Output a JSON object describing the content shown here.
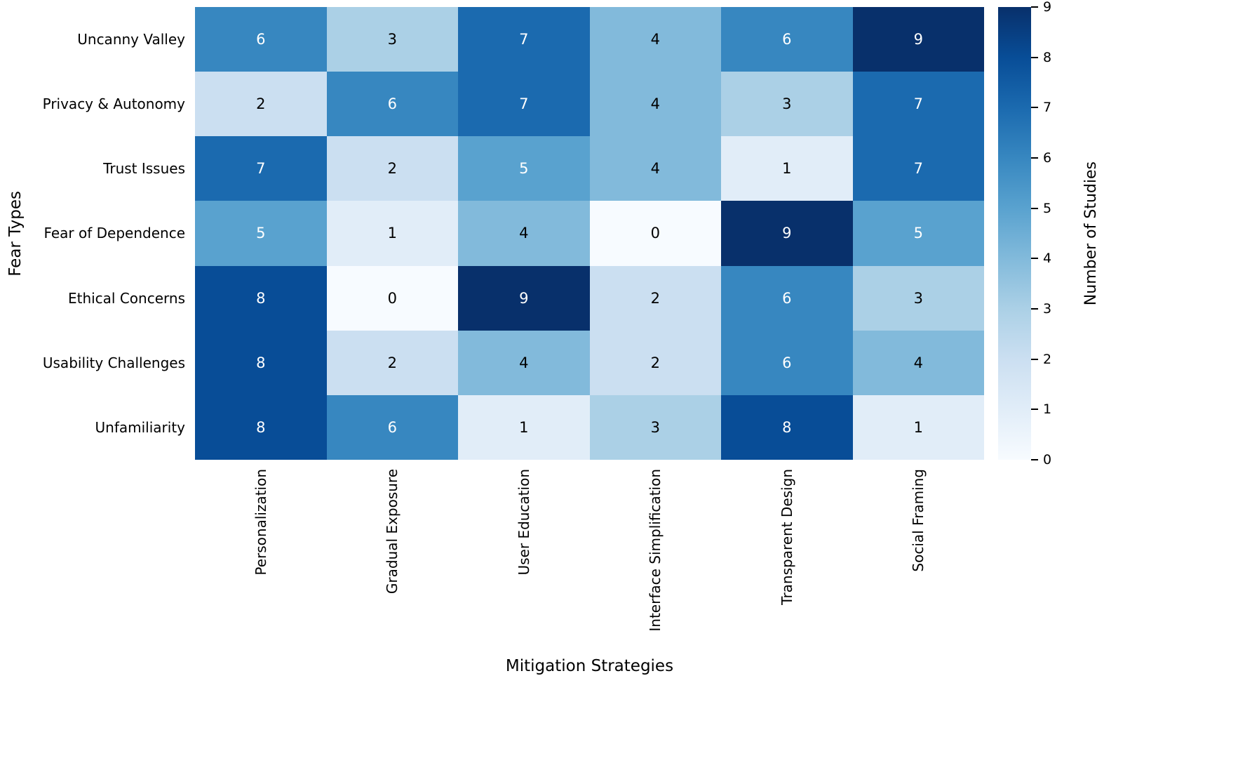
{
  "chart_data": {
    "type": "heatmap",
    "xlabel": "Mitigation Strategies",
    "ylabel": "Fear Types",
    "colorbar_label": "Number of Studies",
    "columns": [
      "Personalization",
      "Gradual Exposure",
      "User Education",
      "Interface Simplification",
      "Transparent Design",
      "Social Framing"
    ],
    "rows": [
      "Uncanny Valley",
      "Privacy & Autonomy",
      "Trust Issues",
      "Fear of Dependence",
      "Ethical Concerns",
      "Usability Challenges",
      "Unfamiliarity"
    ],
    "values": [
      [
        6,
        3,
        7,
        4,
        6,
        9
      ],
      [
        2,
        6,
        7,
        4,
        3,
        7
      ],
      [
        7,
        2,
        5,
        4,
        1,
        7
      ],
      [
        5,
        1,
        4,
        0,
        9,
        5
      ],
      [
        8,
        0,
        9,
        2,
        6,
        3
      ],
      [
        8,
        2,
        4,
        2,
        6,
        4
      ],
      [
        8,
        6,
        1,
        3,
        8,
        1
      ]
    ],
    "vmin": 0,
    "vmax": 9,
    "colorbar_ticks": [
      0,
      1,
      2,
      3,
      4,
      5,
      6,
      7,
      8,
      9
    ],
    "grid": false,
    "legend_position": "right-colorbar",
    "colormap": {
      "name": "Blues",
      "value_colors": [
        "#f7fbff",
        "#e1edf8",
        "#cbdff1",
        "#abd0e6",
        "#82badb",
        "#59a2cf",
        "#3787c0",
        "#1b6aaf",
        "#084d97",
        "#08306b"
      ]
    },
    "annotation_text_light": "#ffffff",
    "annotation_text_dark": "#000000",
    "white_text_threshold": 5,
    "background_color": "#ffffff",
    "tick_color": "#000000"
  }
}
